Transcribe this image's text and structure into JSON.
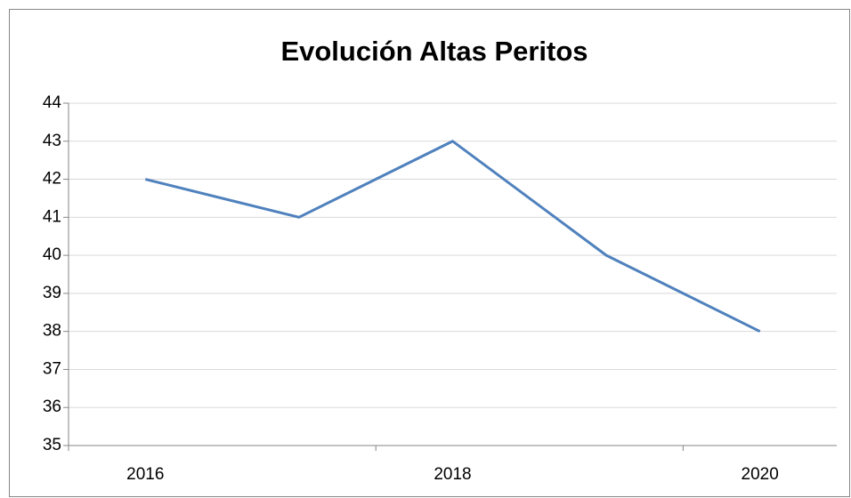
{
  "chart_data": {
    "type": "line",
    "title": "Evolución Altas Peritos",
    "categories": [
      "2016",
      null,
      "2018",
      null,
      "2020"
    ],
    "series": [
      {
        "name": "Altas Peritos",
        "color": "#4f81bd",
        "values": [
          42,
          41,
          43,
          40,
          38
        ]
      }
    ],
    "ylim": [
      35,
      44
    ],
    "yticks": [
      35,
      36,
      37,
      38,
      39,
      40,
      41,
      42,
      43,
      44
    ],
    "grid": true
  }
}
